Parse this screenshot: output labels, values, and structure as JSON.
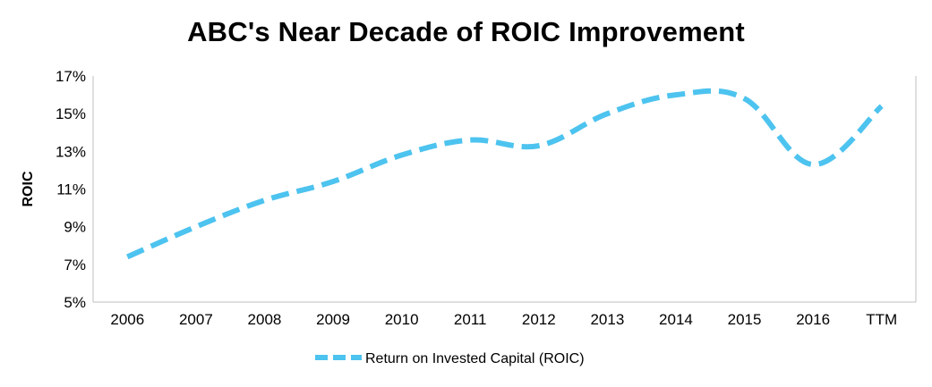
{
  "chart_data": {
    "type": "line",
    "title": "ABC's Near Decade of ROIC Improvement",
    "xlabel": "",
    "ylabel": "ROIC",
    "categories": [
      "2006",
      "2007",
      "2008",
      "2009",
      "2010",
      "2011",
      "2012",
      "2013",
      "2014",
      "2015",
      "2016",
      "TTM"
    ],
    "yticks": [
      "5%",
      "7%",
      "9%",
      "11%",
      "13%",
      "15%",
      "17%"
    ],
    "ylim": [
      5,
      17
    ],
    "grid": false,
    "legend_position": "bottom",
    "series": [
      {
        "name": "Return on Invested Capital (ROIC)",
        "color": "#4DC3EF",
        "line_style": "dashed",
        "values": [
          7.4,
          9.0,
          10.4,
          11.4,
          12.8,
          13.6,
          13.3,
          15.0,
          16.0,
          15.8,
          12.3,
          15.4
        ]
      }
    ]
  }
}
